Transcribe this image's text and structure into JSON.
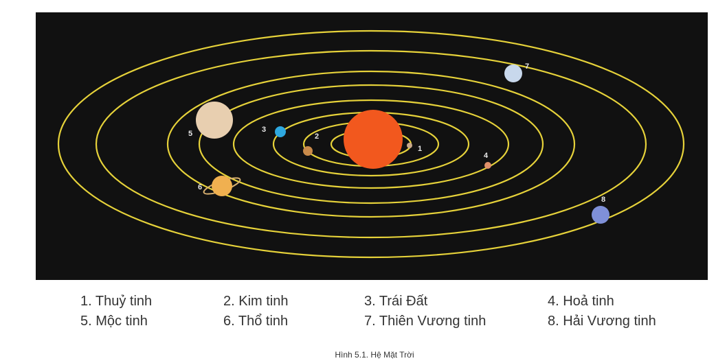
{
  "markers": [
    "1",
    "2",
    "3",
    "4",
    "5",
    "6",
    "7",
    "8"
  ],
  "legend": [
    "1. Thuỷ tinh",
    "2. Kim tinh",
    "3. Trái Đất",
    "4. Hoả tinh",
    "5. Mộc tinh",
    "6. Thổ tinh",
    "7. Thiên Vương tinh",
    "8. Hải Vương tinh"
  ],
  "caption": "Hình 5.1. Hệ Mặt Trời"
}
